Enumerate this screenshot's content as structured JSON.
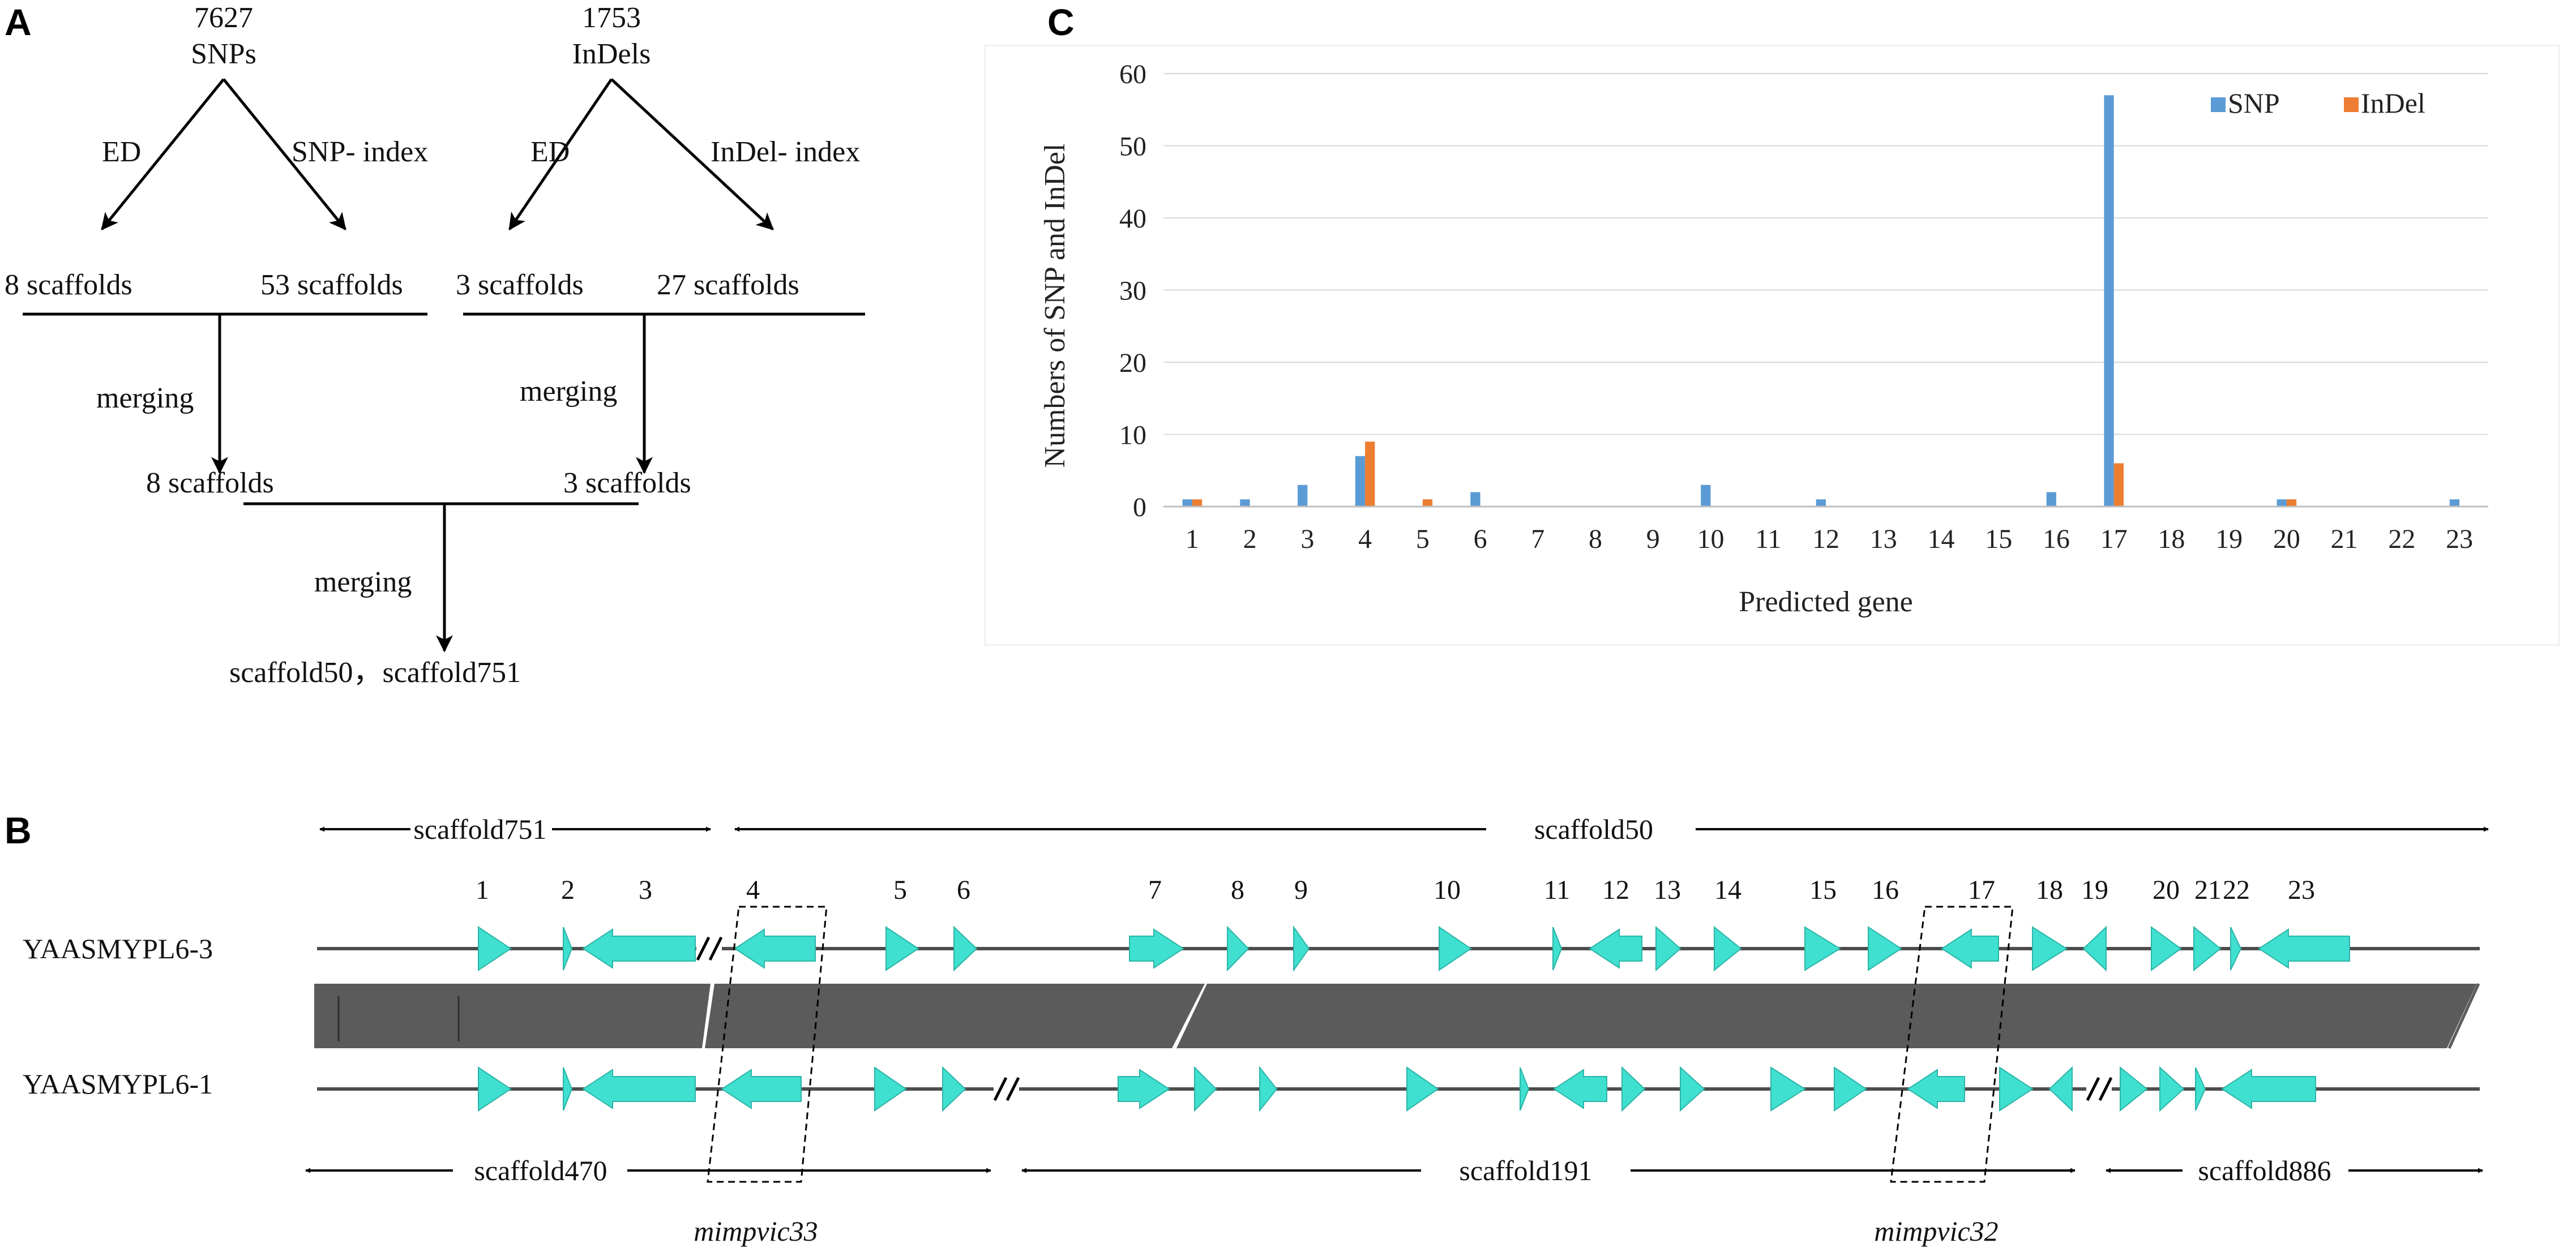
{
  "panels": {
    "a": "A",
    "b": "B",
    "c": "C"
  },
  "flow": {
    "snp_count": "7627",
    "snp_label": "SNPs",
    "indel_count": "1753",
    "indel_label": "InDels",
    "ed_left": "ED",
    "snp_index": "SNP- index",
    "ed_right": "ED",
    "indel_index": "InDel- index",
    "snp_ed_result": "8  scaffolds",
    "snp_index_result": "53  scaffolds",
    "indel_ed_result": "3 scaffolds",
    "indel_index_result": "27  scaffolds",
    "merging_1": "merging",
    "merging_2": "merging",
    "merging_3": "merging",
    "merge_left_result": "8 scaffolds",
    "merge_right_result": "3  scaffolds",
    "final_result": "scaffold50，scaffold751"
  },
  "chart_data": {
    "type": "bar",
    "title": "",
    "xlabel": "Predicted  gene",
    "ylabel": "Numbers  of  SNP and InDel",
    "ylim": [
      0,
      60
    ],
    "yticks": [
      "0",
      "10",
      "20",
      "30",
      "40",
      "50",
      "60"
    ],
    "grid": true,
    "legend": "top-right",
    "categories": [
      "1",
      "2",
      "3",
      "4",
      "5",
      "6",
      "7",
      "8",
      "9",
      "10",
      "11",
      "12",
      "13",
      "14",
      "15",
      "16",
      "17",
      "18",
      "19",
      "20",
      "21",
      "22",
      "23"
    ],
    "series": [
      {
        "name": "SNP",
        "color": "#5b9bd5",
        "values": [
          1,
          1,
          3,
          7,
          0,
          2,
          0,
          0,
          0,
          3,
          0,
          1,
          0,
          0,
          0,
          2,
          57,
          0,
          0,
          1,
          0,
          0,
          1
        ]
      },
      {
        "name": "InDel",
        "color": "#ed7d31",
        "values": [
          1,
          0,
          0,
          9,
          1,
          0,
          0,
          0,
          0,
          0,
          0,
          0,
          0,
          0,
          0,
          0,
          6,
          0,
          0,
          1,
          0,
          0,
          0
        ]
      }
    ]
  },
  "genome": {
    "track_top": "YAASMYPL6-3",
    "track_bottom": "YAASMYPL6-1",
    "scaffold_751": "scaffold751",
    "scaffold_50": "scaffold50",
    "scaffold_470": "scaffold470",
    "scaffold_191": "scaffold191",
    "scaffold_886": "scaffold886",
    "gene_label_33": "mimpvic33",
    "gene_label_32": "mimpvic32",
    "gene_color": "#40e0d0",
    "gene_numbers": [
      "1",
      "2",
      "3",
      "4",
      "5",
      "6",
      "7",
      "8",
      "9",
      "10",
      "11",
      "12",
      "13",
      "14",
      "15",
      "16",
      "17",
      "18",
      "19",
      "20",
      "21",
      "22",
      "23"
    ]
  }
}
